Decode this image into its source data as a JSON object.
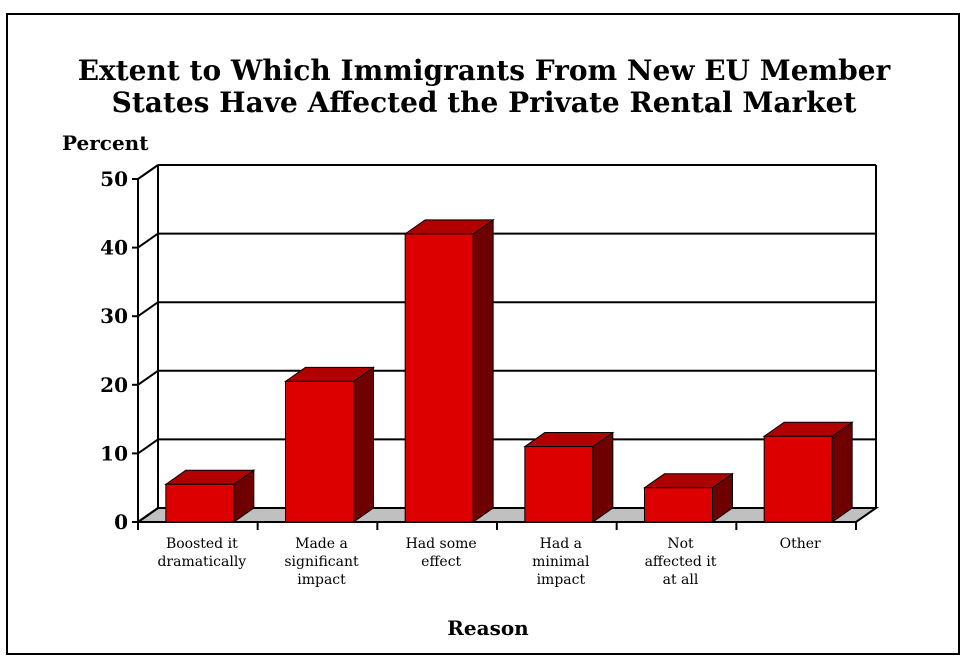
{
  "chart_data": {
    "type": "bar",
    "title": [
      "Extent to Which Immigrants From New EU Member",
      "States Have Affected the Private Rental Market"
    ],
    "xlabel": "Reason",
    "ylabel": "Percent",
    "ylim": [
      0,
      50
    ],
    "yticks": [
      0,
      10,
      20,
      30,
      40,
      50
    ],
    "categories": [
      [
        "Boosted it",
        "dramatically"
      ],
      [
        "Made a",
        "significant",
        "impact"
      ],
      [
        "Had some",
        "effect"
      ],
      [
        "Had a",
        "minimal",
        "impact"
      ],
      [
        "Not",
        "affected it",
        "at all"
      ],
      [
        "Other"
      ]
    ],
    "values": [
      5.5,
      20.5,
      42,
      11,
      5,
      12.5
    ],
    "grid": true,
    "three_d": true,
    "colors": {
      "bar_front": "#dd0000",
      "bar_top": "#b00000",
      "bar_side": "#6e0000",
      "floor": "#c0c0c0",
      "grid": "#000000"
    }
  }
}
